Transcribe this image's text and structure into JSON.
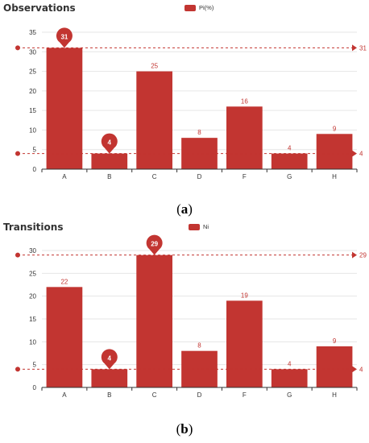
{
  "colors": {
    "bar": "#c23531",
    "axis": "#333333",
    "grid": "#e6e6e6",
    "mark_text": "#ffffff"
  },
  "chart_data": [
    {
      "type": "bar",
      "title": "Observations",
      "legend": "Pi(%)",
      "categories": [
        "A",
        "B",
        "C",
        "D",
        "F",
        "G",
        "H"
      ],
      "series": [
        {
          "name": "Pi(%)",
          "values": [
            31,
            4,
            25,
            8,
            16,
            4,
            9
          ]
        }
      ],
      "ylim": [
        0,
        35
      ],
      "yticks": [
        0,
        5,
        10,
        15,
        20,
        25,
        30,
        35
      ],
      "grid": true,
      "max_mark": {
        "label": "31",
        "category": "A",
        "value": 31
      },
      "min_mark": {
        "label": "4",
        "category": "B",
        "value": 4
      },
      "mark_lines": [
        {
          "label": "31",
          "value": 31
        },
        {
          "label": "4",
          "value": 4
        }
      ],
      "caption_letter": "a"
    },
    {
      "type": "bar",
      "title": "Transitions",
      "legend": "Ni",
      "categories": [
        "A",
        "B",
        "C",
        "D",
        "F",
        "G",
        "H"
      ],
      "series": [
        {
          "name": "Ni",
          "values": [
            22,
            4,
            29,
            8,
            19,
            4,
            9
          ]
        }
      ],
      "ylim": [
        0,
        30
      ],
      "yticks": [
        0,
        5,
        10,
        15,
        20,
        25,
        30
      ],
      "grid": true,
      "max_mark": {
        "label": "29",
        "category": "C",
        "value": 29
      },
      "min_mark": {
        "label": "4",
        "category": "B",
        "value": 4
      },
      "mark_lines": [
        {
          "label": "29",
          "value": 29
        },
        {
          "label": "4",
          "value": 4
        }
      ],
      "caption_letter": "b"
    }
  ]
}
